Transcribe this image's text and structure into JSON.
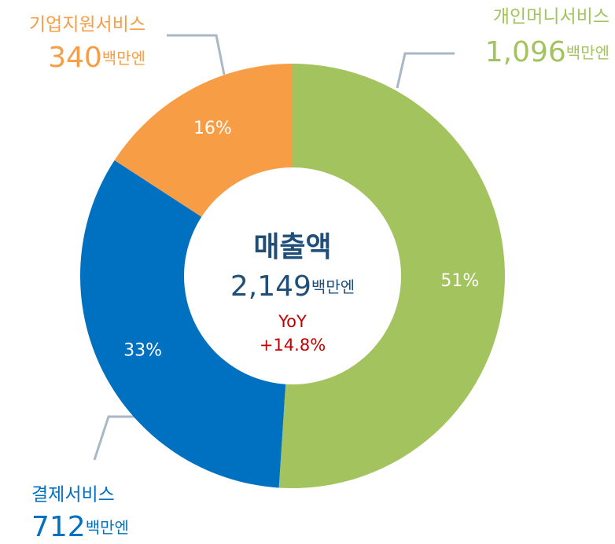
{
  "chart_data": {
    "type": "donut",
    "categories": [
      "개인머니서비스",
      "결제서비스",
      "기업지원서비스"
    ],
    "values": [
      1096,
      712,
      340
    ],
    "value_labels": [
      "1,096",
      "712",
      "340"
    ],
    "percents": [
      51,
      33,
      16
    ],
    "percent_labels": [
      "51%",
      "33%",
      "16%"
    ],
    "colors": [
      "#a3c35e",
      "#0070c0",
      "#f79d45"
    ],
    "unit": "백만엔",
    "center_title": "매출액",
    "total": 2149,
    "total_label": "2,149",
    "yoy_title": "YoY",
    "yoy": "+14.8%"
  }
}
